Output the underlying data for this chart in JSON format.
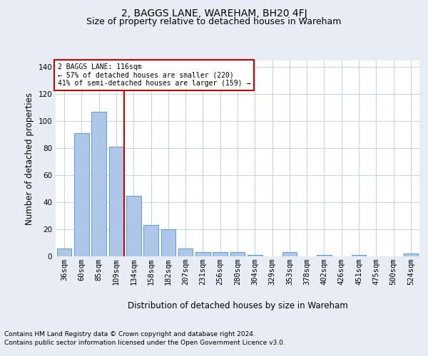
{
  "title": "2, BAGGS LANE, WAREHAM, BH20 4FJ",
  "subtitle": "Size of property relative to detached houses in Wareham",
  "xlabel": "Distribution of detached houses by size in Wareham",
  "ylabel": "Number of detached properties",
  "footer_line1": "Contains HM Land Registry data © Crown copyright and database right 2024.",
  "footer_line2": "Contains public sector information licensed under the Open Government Licence v3.0.",
  "bar_labels": [
    "36sqm",
    "60sqm",
    "85sqm",
    "109sqm",
    "134sqm",
    "158sqm",
    "182sqm",
    "207sqm",
    "231sqm",
    "256sqm",
    "280sqm",
    "304sqm",
    "329sqm",
    "353sqm",
    "378sqm",
    "402sqm",
    "426sqm",
    "451sqm",
    "475sqm",
    "500sqm",
    "524sqm"
  ],
  "bar_values": [
    6,
    91,
    107,
    81,
    45,
    23,
    20,
    6,
    3,
    3,
    3,
    1,
    0,
    3,
    0,
    1,
    0,
    1,
    0,
    0,
    2
  ],
  "bar_color": "#aec6e8",
  "bar_edge_color": "#5b9bd5",
  "property_line_label": "2 BAGGS LANE: 116sqm",
  "annotation_line1": "← 57% of detached houses are smaller (220)",
  "annotation_line2": "41% of semi-detached houses are larger (159) →",
  "annotation_box_color": "#ffffff",
  "annotation_box_edge": "#cc0000",
  "vline_color": "#cc0000",
  "vline_x": 3.45,
  "ylim": [
    0,
    145
  ],
  "yticks": [
    0,
    20,
    40,
    60,
    80,
    100,
    120,
    140
  ],
  "bg_color": "#e8edf5",
  "axes_color": "#ffffff",
  "title_fontsize": 10,
  "subtitle_fontsize": 9,
  "axis_label_fontsize": 8.5,
  "tick_fontsize": 7.5,
  "footer_fontsize": 6.5
}
